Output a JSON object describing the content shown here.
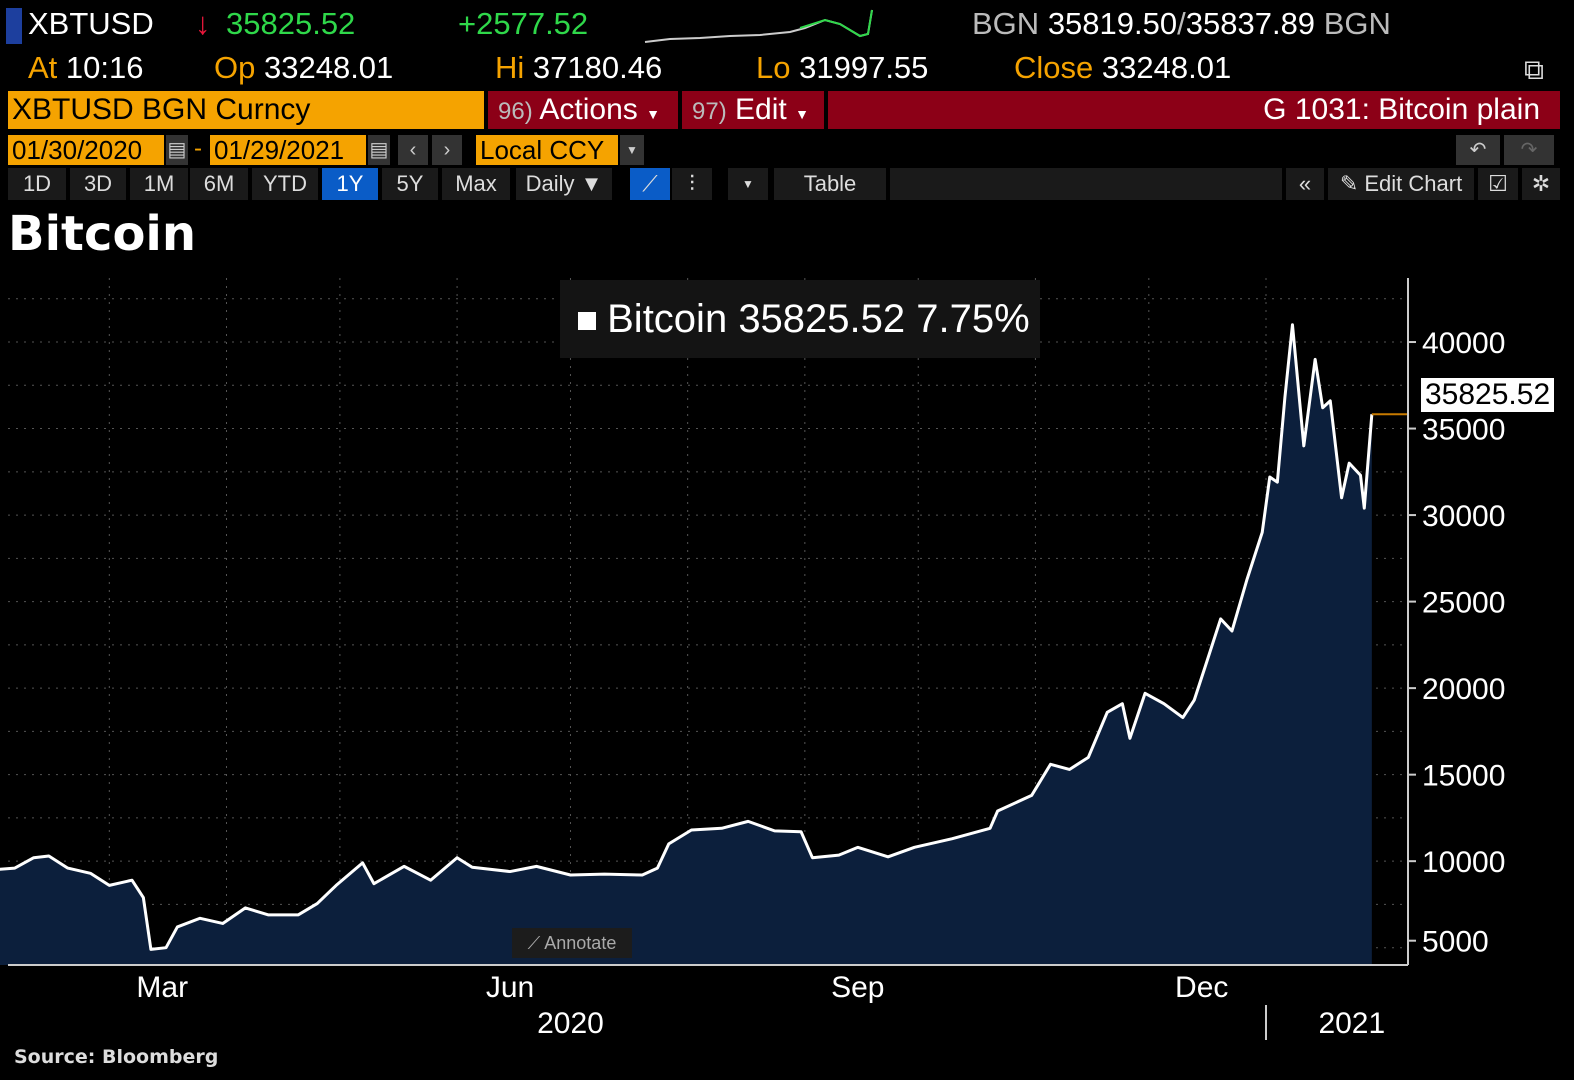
{
  "header": {
    "ticker": "XBTUSD",
    "arrow": "↓",
    "last": "35825.52",
    "change": "+2577.52",
    "bid_src": "BGN",
    "bid": "35819.50",
    "sep": "/",
    "ask": "35837.89",
    "ask_src": "BGN",
    "at_label": "At",
    "at": "10:16",
    "op_label": "Op",
    "op": "33248.01",
    "hi_label": "Hi",
    "hi": "37180.46",
    "lo_label": "Lo",
    "lo": "31997.55",
    "close_label": "Close",
    "close": "33248.01"
  },
  "security": "XBTUSD BGN Curncy",
  "actions": {
    "num": "96)",
    "label": "Actions"
  },
  "edit": {
    "num": "97)",
    "label": "Edit"
  },
  "page_title": "G 1031: Bitcoin plain",
  "range": {
    "start": "01/30/2020",
    "dash": "-",
    "end": "01/29/2021",
    "currency": "Local CCY"
  },
  "periods": [
    "1D",
    "3D",
    "1M",
    "6M",
    "YTD",
    "1Y",
    "5Y",
    "Max"
  ],
  "selected_period": "1Y",
  "frequency": "Daily ▼",
  "table_label": "Table",
  "edit_chart": "Edit Chart",
  "colors": {
    "orange": "#f5a300",
    "red_bar": "#8c0017",
    "green": "#2fd84a",
    "fill": "#0c1f3c",
    "selected": "#0a5cc7"
  },
  "annotate": "Annotate",
  "source": "Source:  Bloomberg",
  "chart_data": {
    "type": "area",
    "title": "Bitcoin",
    "legend": {
      "name": "Bitcoin",
      "value": "35825.52",
      "pct": "7.75%",
      "placement": "top-center"
    },
    "last_value_label": "35825.52",
    "ylim": [
      4000,
      43700
    ],
    "yticks": [
      5000,
      10000,
      15000,
      20000,
      25000,
      30000,
      35000,
      40000
    ],
    "ytick_labels": [
      "5000",
      "10000",
      "15000",
      "20000",
      "25000",
      "30000",
      "35000",
      "40000"
    ],
    "xtick_labels": [
      {
        "label": "Mar",
        "date": "2020-03-15"
      },
      {
        "label": "Jun",
        "date": "2020-06-15"
      },
      {
        "label": "Sep",
        "date": "2020-09-15"
      },
      {
        "label": "Dec",
        "date": "2020-12-15"
      }
    ],
    "year_labels": [
      {
        "label": "2020",
        "date": "2020-07-01"
      },
      {
        "label": "2021",
        "date": "2021-01-20"
      }
    ],
    "grid": true,
    "series": [
      {
        "name": "Bitcoin",
        "points": [
          [
            "2020-01-30",
            9500
          ],
          [
            "2020-02-05",
            9600
          ],
          [
            "2020-02-10",
            10200
          ],
          [
            "2020-02-14",
            10300
          ],
          [
            "2020-02-19",
            9600
          ],
          [
            "2020-02-25",
            9300
          ],
          [
            "2020-03-01",
            8600
          ],
          [
            "2020-03-07",
            8900
          ],
          [
            "2020-03-10",
            7900
          ],
          [
            "2020-03-12",
            4900
          ],
          [
            "2020-03-16",
            5000
          ],
          [
            "2020-03-19",
            6200
          ],
          [
            "2020-03-25",
            6700
          ],
          [
            "2020-03-31",
            6400
          ],
          [
            "2020-04-06",
            7300
          ],
          [
            "2020-04-12",
            6900
          ],
          [
            "2020-04-20",
            6900
          ],
          [
            "2020-04-25",
            7550
          ],
          [
            "2020-04-30",
            8600
          ],
          [
            "2020-05-07",
            9900
          ],
          [
            "2020-05-10",
            8700
          ],
          [
            "2020-05-18",
            9700
          ],
          [
            "2020-05-25",
            8900
          ],
          [
            "2020-06-01",
            10200
          ],
          [
            "2020-06-05",
            9650
          ],
          [
            "2020-06-15",
            9400
          ],
          [
            "2020-06-22",
            9700
          ],
          [
            "2020-07-01",
            9200
          ],
          [
            "2020-07-10",
            9250
          ],
          [
            "2020-07-20",
            9200
          ],
          [
            "2020-07-24",
            9600
          ],
          [
            "2020-07-27",
            11000
          ],
          [
            "2020-08-02",
            11800
          ],
          [
            "2020-08-10",
            11900
          ],
          [
            "2020-08-17",
            12300
          ],
          [
            "2020-08-24",
            11750
          ],
          [
            "2020-08-31",
            11700
          ],
          [
            "2020-09-03",
            10200
          ],
          [
            "2020-09-10",
            10350
          ],
          [
            "2020-09-15",
            10800
          ],
          [
            "2020-09-23",
            10250
          ],
          [
            "2020-09-30",
            10800
          ],
          [
            "2020-10-10",
            11300
          ],
          [
            "2020-10-20",
            11900
          ],
          [
            "2020-10-22",
            12900
          ],
          [
            "2020-10-31",
            13800
          ],
          [
            "2020-11-05",
            15600
          ],
          [
            "2020-11-10",
            15300
          ],
          [
            "2020-11-15",
            16000
          ],
          [
            "2020-11-20",
            18600
          ],
          [
            "2020-11-24",
            19100
          ],
          [
            "2020-11-26",
            17100
          ],
          [
            "2020-11-30",
            19700
          ],
          [
            "2020-12-05",
            19100
          ],
          [
            "2020-12-10",
            18300
          ],
          [
            "2020-12-13",
            19300
          ],
          [
            "2020-12-16",
            21300
          ],
          [
            "2020-12-20",
            24000
          ],
          [
            "2020-12-23",
            23300
          ],
          [
            "2020-12-27",
            26300
          ],
          [
            "2020-12-31",
            29000
          ],
          [
            "2021-01-02",
            32200
          ],
          [
            "2021-01-04",
            31900
          ],
          [
            "2021-01-06",
            36800
          ],
          [
            "2021-01-08",
            41000
          ],
          [
            "2021-01-11",
            34000
          ],
          [
            "2021-01-14",
            39000
          ],
          [
            "2021-01-16",
            36200
          ],
          [
            "2021-01-18",
            36600
          ],
          [
            "2021-01-21",
            31000
          ],
          [
            "2021-01-23",
            33000
          ],
          [
            "2021-01-26",
            32300
          ],
          [
            "2021-01-27",
            30400
          ],
          [
            "2021-01-29",
            35825.52
          ]
        ]
      }
    ]
  }
}
